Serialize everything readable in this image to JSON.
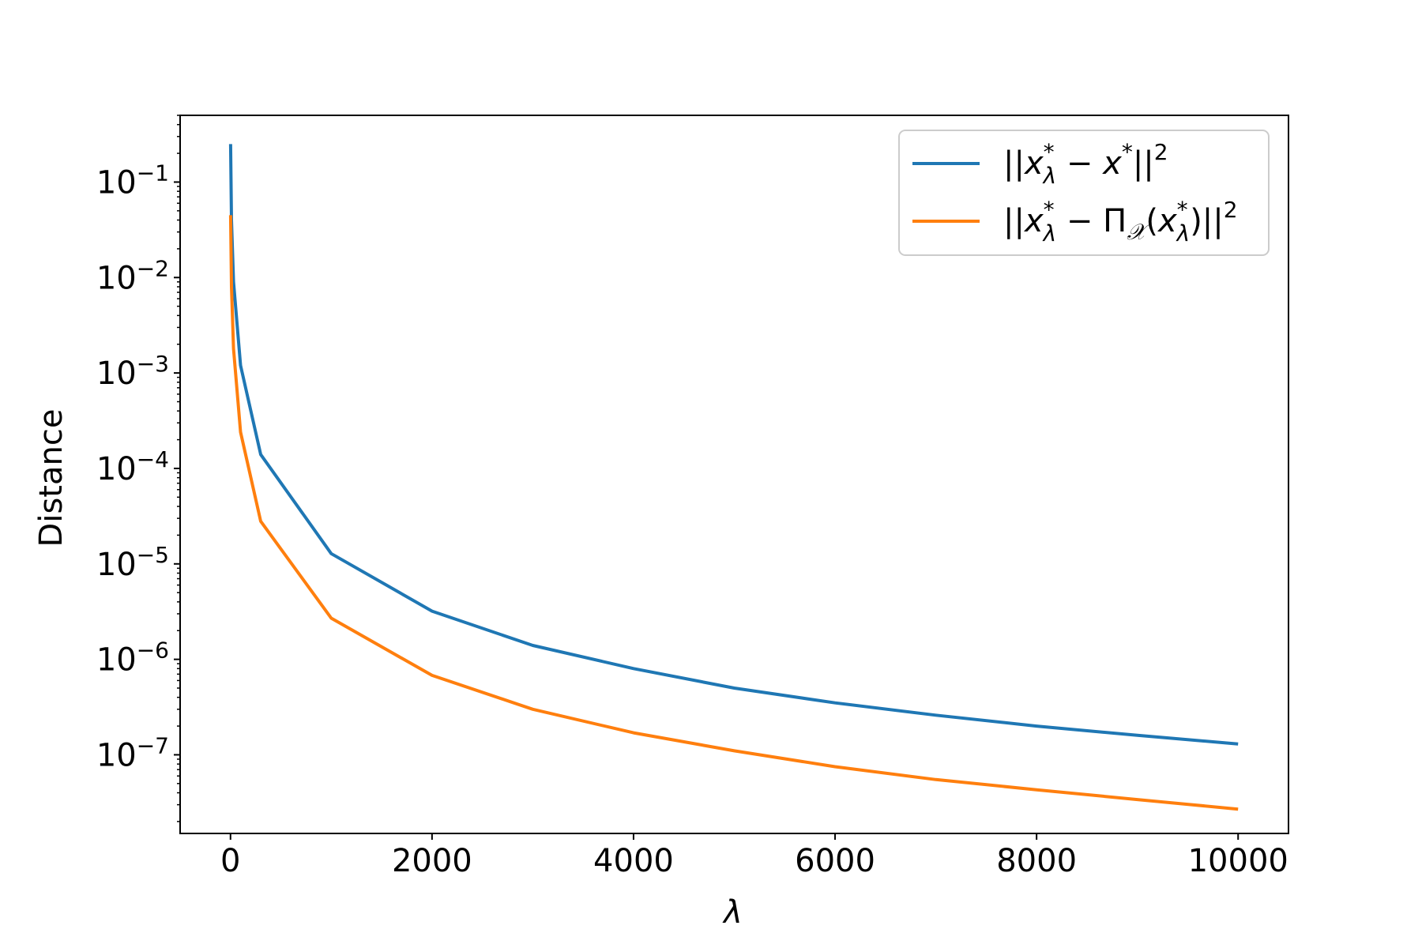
{
  "chart_data": {
    "type": "line",
    "xlabel": "λ",
    "ylabel": "Distance",
    "yscale": "log",
    "xlim": [
      -500,
      10500
    ],
    "ylim": [
      1.5e-08,
      0.5
    ],
    "grid": false,
    "legend_position": "top-right",
    "x_ticks": [
      {
        "value": 0,
        "label": "0"
      },
      {
        "value": 2000,
        "label": "2000"
      },
      {
        "value": 4000,
        "label": "4000"
      },
      {
        "value": 6000,
        "label": "6000"
      },
      {
        "value": 8000,
        "label": "8000"
      },
      {
        "value": 10000,
        "label": "10000"
      }
    ],
    "y_ticks": [
      {
        "exponent": -1,
        "label_base": "10",
        "label_exp": "−1"
      },
      {
        "exponent": -2,
        "label_base": "10",
        "label_exp": "−2"
      },
      {
        "exponent": -3,
        "label_base": "10",
        "label_exp": "−3"
      },
      {
        "exponent": -4,
        "label_base": "10",
        "label_exp": "−4"
      },
      {
        "exponent": -5,
        "label_base": "10",
        "label_exp": "−5"
      },
      {
        "exponent": -6,
        "label_base": "10",
        "label_exp": "−6"
      },
      {
        "exponent": -7,
        "label_base": "10",
        "label_exp": "−7"
      }
    ],
    "series": [
      {
        "name": "||x_λ* − x*||²",
        "color": "#1f77b4",
        "x": [
          1,
          10,
          30,
          100,
          300,
          1000,
          2000,
          3000,
          4000,
          5000,
          6000,
          7000,
          8000,
          9000,
          10000
        ],
        "y": [
          0.25,
          0.04,
          0.009,
          0.0012,
          0.00014,
          1.28e-05,
          3.2e-06,
          1.4e-06,
          8e-07,
          5e-07,
          3.5e-07,
          2.6e-07,
          2e-07,
          1.6e-07,
          1.3e-07
        ]
      },
      {
        "name": "||x_λ* − Π_𝒳(x_λ*)||²",
        "color": "#ff7f0e",
        "x": [
          1,
          10,
          30,
          100,
          300,
          1000,
          2000,
          3000,
          4000,
          5000,
          6000,
          7000,
          8000,
          9000,
          10000
        ],
        "y": [
          0.045,
          0.008,
          0.0018,
          0.00024,
          2.8e-05,
          2.7e-06,
          6.8e-07,
          3e-07,
          1.7e-07,
          1.1e-07,
          7.5e-08,
          5.5e-08,
          4.3e-08,
          3.4e-08,
          2.7e-08
        ]
      }
    ]
  }
}
